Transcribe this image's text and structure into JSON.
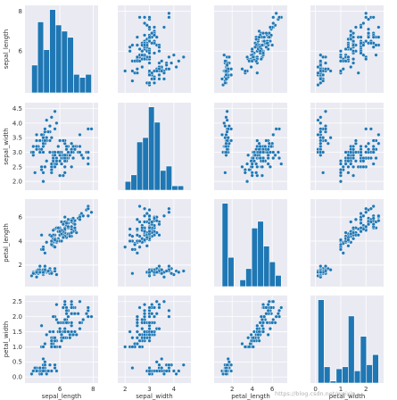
{
  "chart_data": {
    "type": "scatter",
    "title": "",
    "variables": [
      "sepal_length",
      "sepal_width",
      "petal_length",
      "petal_width"
    ],
    "ranges": {
      "sepal_length": [
        3.9,
        8.3
      ],
      "sepal_width": [
        1.7,
        4.7
      ],
      "petal_length": [
        0.2,
        7.5
      ],
      "petal_width": [
        -0.2,
        2.7
      ]
    },
    "ticks": {
      "sepal_length": [
        6,
        8
      ],
      "sepal_width": [
        2.0,
        2.5,
        3.0,
        3.5,
        4.0,
        4.5
      ],
      "petal_length": [
        2,
        4,
        6
      ],
      "petal_width": [
        0.0,
        0.5,
        1.0,
        1.5,
        2.0,
        2.5
      ]
    },
    "xticks": {
      "sepal_length": [
        6,
        8
      ],
      "sepal_width": [
        2,
        3,
        4
      ],
      "petal_length": [
        2,
        4,
        6
      ],
      "petal_width": [
        0,
        1,
        2
      ]
    },
    "grid": true,
    "histograms": {
      "sepal_length": {
        "edges": [
          4.3,
          4.66,
          5.02,
          5.38,
          5.74,
          6.1,
          6.46,
          6.82,
          7.18,
          7.54,
          7.9
        ],
        "counts": [
          9,
          23,
          14,
          27,
          22,
          20,
          18,
          6,
          5,
          6
        ]
      },
      "sepal_width": {
        "edges": [
          2.0,
          2.24,
          2.48,
          2.72,
          2.96,
          3.2,
          3.44,
          3.68,
          3.92,
          4.16,
          4.4
        ],
        "counts": [
          4,
          7,
          22,
          24,
          38,
          31,
          9,
          11,
          2,
          2
        ]
      },
      "petal_length": {
        "edges": [
          1.0,
          1.59,
          2.18,
          2.77,
          3.36,
          3.95,
          4.54,
          5.13,
          5.72,
          6.31,
          6.9
        ],
        "counts": [
          37,
          13,
          0,
          3,
          8,
          26,
          29,
          18,
          11,
          5
        ]
      },
      "petal_width": {
        "edges": [
          0.1,
          0.34,
          0.58,
          0.82,
          1.06,
          1.3,
          1.54,
          1.78,
          2.02,
          2.26,
          2.5
        ],
        "counts": [
          41,
          8,
          1,
          7,
          8,
          33,
          6,
          23,
          9,
          14
        ]
      }
    },
    "points": [
      [
        5.1,
        3.5,
        1.4,
        0.2
      ],
      [
        4.9,
        3.0,
        1.4,
        0.2
      ],
      [
        4.7,
        3.2,
        1.3,
        0.2
      ],
      [
        4.6,
        3.1,
        1.5,
        0.2
      ],
      [
        5.0,
        3.6,
        1.4,
        0.2
      ],
      [
        5.4,
        3.9,
        1.7,
        0.4
      ],
      [
        4.6,
        3.4,
        1.4,
        0.3
      ],
      [
        5.0,
        3.4,
        1.5,
        0.2
      ],
      [
        4.4,
        2.9,
        1.4,
        0.2
      ],
      [
        4.9,
        3.1,
        1.5,
        0.1
      ],
      [
        5.4,
        3.7,
        1.5,
        0.2
      ],
      [
        4.8,
        3.4,
        1.6,
        0.2
      ],
      [
        4.8,
        3.0,
        1.4,
        0.1
      ],
      [
        4.3,
        3.0,
        1.1,
        0.1
      ],
      [
        5.8,
        4.0,
        1.2,
        0.2
      ],
      [
        5.7,
        4.4,
        1.5,
        0.4
      ],
      [
        5.4,
        3.9,
        1.3,
        0.4
      ],
      [
        5.1,
        3.5,
        1.4,
        0.3
      ],
      [
        5.7,
        3.8,
        1.7,
        0.3
      ],
      [
        5.1,
        3.8,
        1.5,
        0.3
      ],
      [
        5.4,
        3.4,
        1.7,
        0.2
      ],
      [
        5.1,
        3.7,
        1.5,
        0.4
      ],
      [
        4.6,
        3.6,
        1.0,
        0.2
      ],
      [
        5.1,
        3.3,
        1.7,
        0.5
      ],
      [
        4.8,
        3.4,
        1.9,
        0.2
      ],
      [
        5.0,
        3.0,
        1.6,
        0.2
      ],
      [
        5.0,
        3.4,
        1.6,
        0.4
      ],
      [
        5.2,
        3.5,
        1.5,
        0.2
      ],
      [
        5.2,
        3.4,
        1.4,
        0.2
      ],
      [
        4.7,
        3.2,
        1.6,
        0.2
      ],
      [
        4.8,
        3.1,
        1.6,
        0.2
      ],
      [
        5.4,
        3.4,
        1.5,
        0.4
      ],
      [
        5.2,
        4.1,
        1.5,
        0.1
      ],
      [
        5.5,
        4.2,
        1.4,
        0.2
      ],
      [
        4.9,
        3.1,
        1.5,
        0.2
      ],
      [
        5.0,
        3.2,
        1.2,
        0.2
      ],
      [
        5.5,
        3.5,
        1.3,
        0.2
      ],
      [
        4.9,
        3.6,
        1.4,
        0.1
      ],
      [
        4.4,
        3.0,
        1.3,
        0.2
      ],
      [
        5.1,
        3.4,
        1.5,
        0.2
      ],
      [
        5.0,
        3.5,
        1.3,
        0.3
      ],
      [
        4.5,
        2.3,
        1.3,
        0.3
      ],
      [
        4.4,
        3.2,
        1.3,
        0.2
      ],
      [
        5.0,
        3.5,
        1.6,
        0.6
      ],
      [
        5.1,
        3.8,
        1.9,
        0.4
      ],
      [
        4.8,
        3.0,
        1.4,
        0.3
      ],
      [
        5.1,
        3.8,
        1.6,
        0.2
      ],
      [
        4.6,
        3.2,
        1.4,
        0.2
      ],
      [
        5.3,
        3.7,
        1.5,
        0.2
      ],
      [
        5.0,
        3.3,
        1.4,
        0.2
      ],
      [
        7.0,
        3.2,
        4.7,
        1.4
      ],
      [
        6.4,
        3.2,
        4.5,
        1.5
      ],
      [
        6.9,
        3.1,
        4.9,
        1.5
      ],
      [
        5.5,
        2.3,
        4.0,
        1.3
      ],
      [
        6.5,
        2.8,
        4.6,
        1.5
      ],
      [
        5.7,
        2.8,
        4.5,
        1.3
      ],
      [
        6.3,
        3.3,
        4.7,
        1.6
      ],
      [
        4.9,
        2.4,
        3.3,
        1.0
      ],
      [
        6.6,
        2.9,
        4.6,
        1.3
      ],
      [
        5.2,
        2.7,
        3.9,
        1.4
      ],
      [
        5.0,
        2.0,
        3.5,
        1.0
      ],
      [
        5.9,
        3.0,
        4.2,
        1.5
      ],
      [
        6.0,
        2.2,
        4.0,
        1.0
      ],
      [
        6.1,
        2.9,
        4.7,
        1.4
      ],
      [
        5.6,
        2.9,
        3.6,
        1.3
      ],
      [
        6.7,
        3.1,
        4.4,
        1.4
      ],
      [
        5.6,
        3.0,
        4.5,
        1.5
      ],
      [
        5.8,
        2.7,
        4.1,
        1.0
      ],
      [
        6.2,
        2.2,
        4.5,
        1.5
      ],
      [
        5.6,
        2.5,
        3.9,
        1.1
      ],
      [
        5.9,
        3.2,
        4.8,
        1.8
      ],
      [
        6.1,
        2.8,
        4.0,
        1.3
      ],
      [
        6.3,
        2.5,
        4.9,
        1.5
      ],
      [
        6.1,
        2.8,
        4.7,
        1.2
      ],
      [
        6.4,
        2.9,
        4.3,
        1.3
      ],
      [
        6.6,
        3.0,
        4.4,
        1.4
      ],
      [
        6.8,
        2.8,
        4.8,
        1.4
      ],
      [
        6.7,
        3.0,
        5.0,
        1.7
      ],
      [
        6.0,
        2.9,
        4.5,
        1.5
      ],
      [
        5.7,
        2.6,
        3.5,
        1.0
      ],
      [
        5.5,
        2.4,
        3.8,
        1.1
      ],
      [
        5.5,
        2.4,
        3.7,
        1.0
      ],
      [
        5.8,
        2.7,
        3.9,
        1.2
      ],
      [
        6.0,
        2.7,
        5.1,
        1.6
      ],
      [
        5.4,
        3.0,
        4.5,
        1.5
      ],
      [
        6.0,
        3.4,
        4.5,
        1.6
      ],
      [
        6.7,
        3.1,
        4.7,
        1.5
      ],
      [
        6.3,
        2.3,
        4.4,
        1.3
      ],
      [
        5.6,
        3.0,
        4.1,
        1.3
      ],
      [
        5.5,
        2.5,
        4.0,
        1.3
      ],
      [
        5.5,
        2.6,
        4.4,
        1.2
      ],
      [
        6.1,
        3.0,
        4.6,
        1.4
      ],
      [
        5.8,
        2.6,
        4.0,
        1.2
      ],
      [
        5.0,
        2.3,
        3.3,
        1.0
      ],
      [
        5.6,
        2.7,
        4.2,
        1.3
      ],
      [
        5.7,
        3.0,
        4.2,
        1.2
      ],
      [
        5.7,
        2.9,
        4.2,
        1.3
      ],
      [
        6.2,
        2.9,
        4.3,
        1.3
      ],
      [
        5.1,
        2.5,
        3.0,
        1.1
      ],
      [
        5.7,
        2.8,
        4.1,
        1.3
      ],
      [
        6.3,
        3.3,
        6.0,
        2.5
      ],
      [
        5.8,
        2.7,
        5.1,
        1.9
      ],
      [
        7.1,
        3.0,
        5.9,
        2.1
      ],
      [
        6.3,
        2.9,
        5.6,
        1.8
      ],
      [
        6.5,
        3.0,
        5.8,
        2.2
      ],
      [
        7.6,
        3.0,
        6.6,
        2.1
      ],
      [
        4.9,
        2.5,
        4.5,
        1.7
      ],
      [
        7.3,
        2.9,
        6.3,
        1.8
      ],
      [
        6.7,
        2.5,
        5.8,
        1.8
      ],
      [
        7.2,
        3.6,
        6.1,
        2.5
      ],
      [
        6.5,
        3.2,
        5.1,
        2.0
      ],
      [
        6.4,
        2.7,
        5.3,
        1.9
      ],
      [
        6.8,
        3.0,
        5.5,
        2.1
      ],
      [
        5.7,
        2.5,
        5.0,
        2.0
      ],
      [
        5.8,
        2.8,
        5.1,
        2.4
      ],
      [
        6.4,
        3.2,
        5.3,
        2.3
      ],
      [
        6.5,
        3.0,
        5.5,
        1.8
      ],
      [
        7.7,
        3.8,
        6.7,
        2.2
      ],
      [
        7.7,
        2.6,
        6.9,
        2.3
      ],
      [
        6.0,
        2.2,
        5.0,
        1.5
      ],
      [
        6.9,
        3.2,
        5.7,
        2.3
      ],
      [
        5.6,
        2.8,
        4.9,
        2.0
      ],
      [
        7.7,
        2.8,
        6.7,
        2.0
      ],
      [
        6.3,
        2.7,
        4.9,
        1.8
      ],
      [
        6.7,
        3.3,
        5.7,
        2.1
      ],
      [
        7.2,
        3.2,
        6.0,
        1.8
      ],
      [
        6.2,
        2.8,
        4.8,
        1.8
      ],
      [
        6.1,
        3.0,
        4.9,
        1.8
      ],
      [
        6.4,
        2.8,
        5.6,
        2.1
      ],
      [
        7.2,
        3.0,
        5.8,
        1.6
      ],
      [
        7.4,
        2.8,
        6.1,
        1.9
      ],
      [
        7.9,
        3.8,
        6.4,
        2.0
      ],
      [
        6.4,
        2.8,
        5.6,
        2.2
      ],
      [
        6.3,
        2.8,
        5.1,
        1.5
      ],
      [
        6.1,
        2.6,
        5.6,
        1.4
      ],
      [
        7.7,
        3.0,
        6.1,
        2.3
      ],
      [
        6.3,
        3.4,
        5.6,
        2.4
      ],
      [
        6.4,
        3.1,
        5.5,
        1.8
      ],
      [
        6.0,
        3.0,
        4.8,
        1.8
      ],
      [
        6.9,
        3.1,
        5.4,
        2.1
      ],
      [
        6.7,
        3.1,
        5.6,
        2.4
      ],
      [
        6.9,
        3.1,
        5.1,
        2.3
      ],
      [
        5.8,
        2.7,
        5.1,
        1.9
      ],
      [
        6.8,
        3.2,
        5.9,
        2.3
      ],
      [
        6.7,
        3.3,
        5.7,
        2.5
      ],
      [
        6.7,
        3.0,
        5.2,
        2.3
      ],
      [
        6.3,
        2.5,
        5.0,
        1.9
      ],
      [
        6.5,
        3.0,
        5.2,
        2.0
      ],
      [
        6.2,
        3.4,
        5.4,
        2.3
      ],
      [
        5.9,
        3.0,
        5.1,
        1.8
      ]
    ]
  },
  "watermark": "https://blog.csdn.net/weixin_..."
}
